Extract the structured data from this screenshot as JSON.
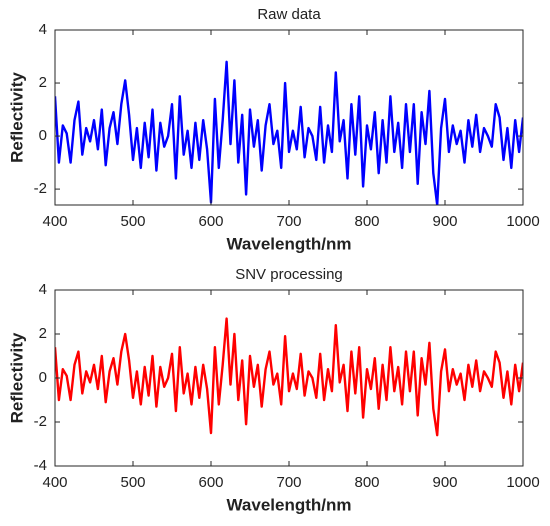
{
  "chart_data": [
    {
      "type": "line",
      "title": "Raw data",
      "xlabel": "Wavelength/nm",
      "ylabel": "Reflectivity",
      "xlim": [
        400,
        1000
      ],
      "xticks": [
        400,
        500,
        600,
        700,
        800,
        900,
        1000
      ],
      "ylim": [
        -2.6,
        4
      ],
      "yticks": [
        -2,
        0,
        2,
        4
      ],
      "x": [
        400,
        405,
        410,
        415,
        420,
        425,
        430,
        435,
        440,
        445,
        450,
        455,
        460,
        465,
        470,
        475,
        480,
        485,
        490,
        495,
        500,
        505,
        510,
        515,
        520,
        525,
        530,
        535,
        540,
        545,
        550,
        555,
        560,
        565,
        570,
        575,
        580,
        585,
        590,
        595,
        600,
        605,
        610,
        615,
        620,
        625,
        630,
        635,
        640,
        645,
        650,
        655,
        660,
        665,
        670,
        675,
        680,
        685,
        690,
        695,
        700,
        705,
        710,
        715,
        720,
        725,
        730,
        735,
        740,
        745,
        750,
        755,
        760,
        765,
        770,
        775,
        780,
        785,
        790,
        795,
        800,
        805,
        810,
        815,
        820,
        825,
        830,
        835,
        840,
        845,
        850,
        855,
        860,
        865,
        870,
        875,
        880,
        885,
        890,
        895,
        900,
        905,
        910,
        915,
        920,
        925,
        930,
        935,
        940,
        945,
        950,
        955,
        960,
        965,
        970,
        975,
        980,
        985,
        990,
        995,
        1000
      ],
      "series": [
        {
          "name": "Raw data",
          "color": "#0000ff",
          "values": [
            1.5,
            -1.0,
            0.4,
            0.1,
            -1.0,
            0.6,
            1.3,
            -0.7,
            0.3,
            -0.2,
            0.6,
            -0.5,
            1.0,
            -1.1,
            0.3,
            0.9,
            -0.3,
            1.2,
            2.1,
            0.8,
            -0.9,
            0.3,
            -1.2,
            0.5,
            -0.8,
            1.0,
            -1.3,
            0.5,
            -0.4,
            0.0,
            1.2,
            -1.6,
            1.5,
            -0.7,
            0.2,
            -1.2,
            0.5,
            -0.9,
            0.6,
            -0.5,
            -2.5,
            1.4,
            -1.2,
            0.6,
            2.8,
            -0.3,
            2.1,
            -1.0,
            0.8,
            -2.2,
            1.0,
            -0.4,
            0.6,
            -1.3,
            0.4,
            1.2,
            -0.3,
            0.2,
            -1.2,
            2.0,
            -0.6,
            0.2,
            -0.5,
            1.1,
            -0.8,
            0.3,
            0.0,
            -0.9,
            1.1,
            -1.0,
            0.4,
            -0.6,
            2.4,
            -0.2,
            0.6,
            -1.6,
            1.2,
            -0.7,
            1.5,
            -1.9,
            0.4,
            -0.5,
            0.9,
            -1.4,
            0.6,
            -1.0,
            1.5,
            -0.6,
            0.5,
            -1.2,
            1.2,
            -0.6,
            1.2,
            -1.8,
            0.9,
            -0.3,
            1.7,
            -1.4,
            -2.6,
            0.3,
            1.4,
            -0.6,
            0.4,
            -0.3,
            0.2,
            -1.0,
            0.6,
            -0.4,
            0.8,
            -0.6,
            0.3,
            0.0,
            -0.4,
            1.2,
            0.7,
            -0.9,
            0.3,
            -1.2,
            0.6,
            -0.6,
            0.7
          ]
        }
      ]
    },
    {
      "type": "line",
      "title": "SNV processing",
      "xlabel": "Wavelength/nm",
      "ylabel": "Reflectivity",
      "xlim": [
        400,
        1000
      ],
      "xticks": [
        400,
        500,
        600,
        700,
        800,
        900,
        1000
      ],
      "ylim": [
        -4,
        4
      ],
      "yticks": [
        -4,
        -2,
        0,
        2,
        4
      ],
      "x": [
        400,
        405,
        410,
        415,
        420,
        425,
        430,
        435,
        440,
        445,
        450,
        455,
        460,
        465,
        470,
        475,
        480,
        485,
        490,
        495,
        500,
        505,
        510,
        515,
        520,
        525,
        530,
        535,
        540,
        545,
        550,
        555,
        560,
        565,
        570,
        575,
        580,
        585,
        590,
        595,
        600,
        605,
        610,
        615,
        620,
        625,
        630,
        635,
        640,
        645,
        650,
        655,
        660,
        665,
        670,
        675,
        680,
        685,
        690,
        695,
        700,
        705,
        710,
        715,
        720,
        725,
        730,
        735,
        740,
        745,
        750,
        755,
        760,
        765,
        770,
        775,
        780,
        785,
        790,
        795,
        800,
        805,
        810,
        815,
        820,
        825,
        830,
        835,
        840,
        845,
        850,
        855,
        860,
        865,
        870,
        875,
        880,
        885,
        890,
        895,
        900,
        905,
        910,
        915,
        920,
        925,
        930,
        935,
        940,
        945,
        950,
        955,
        960,
        965,
        970,
        975,
        980,
        985,
        990,
        995,
        1000
      ],
      "series": [
        {
          "name": "SNV processing",
          "color": "#ff0000",
          "values": [
            1.4,
            -1.0,
            0.4,
            0.1,
            -1.0,
            0.6,
            1.2,
            -0.7,
            0.3,
            -0.2,
            0.6,
            -0.5,
            1.0,
            -1.1,
            0.3,
            0.9,
            -0.3,
            1.2,
            2.0,
            0.8,
            -0.9,
            0.3,
            -1.2,
            0.5,
            -0.8,
            1.0,
            -1.3,
            0.5,
            -0.4,
            0.0,
            1.1,
            -1.5,
            1.4,
            -0.7,
            0.2,
            -1.2,
            0.5,
            -0.9,
            0.6,
            -0.5,
            -2.5,
            1.4,
            -1.2,
            0.6,
            2.7,
            -0.3,
            2.0,
            -1.0,
            0.8,
            -2.1,
            1.0,
            -0.4,
            0.6,
            -1.3,
            0.4,
            1.2,
            -0.3,
            0.2,
            -1.2,
            1.9,
            -0.6,
            0.2,
            -0.5,
            1.1,
            -0.8,
            0.3,
            0.0,
            -0.9,
            1.1,
            -1.0,
            0.4,
            -0.6,
            2.4,
            -0.2,
            0.6,
            -1.5,
            1.2,
            -0.7,
            1.4,
            -1.8,
            0.4,
            -0.5,
            0.9,
            -1.4,
            0.6,
            -1.0,
            1.4,
            -0.6,
            0.5,
            -1.2,
            1.2,
            -0.6,
            1.2,
            -1.7,
            0.9,
            -0.3,
            1.6,
            -1.4,
            -2.6,
            0.3,
            1.3,
            -0.6,
            0.4,
            -0.3,
            0.2,
            -1.0,
            0.6,
            -0.4,
            0.8,
            -0.6,
            0.3,
            0.0,
            -0.4,
            1.2,
            0.7,
            -0.9,
            0.3,
            -1.2,
            0.6,
            -0.6,
            0.7
          ]
        }
      ]
    }
  ]
}
